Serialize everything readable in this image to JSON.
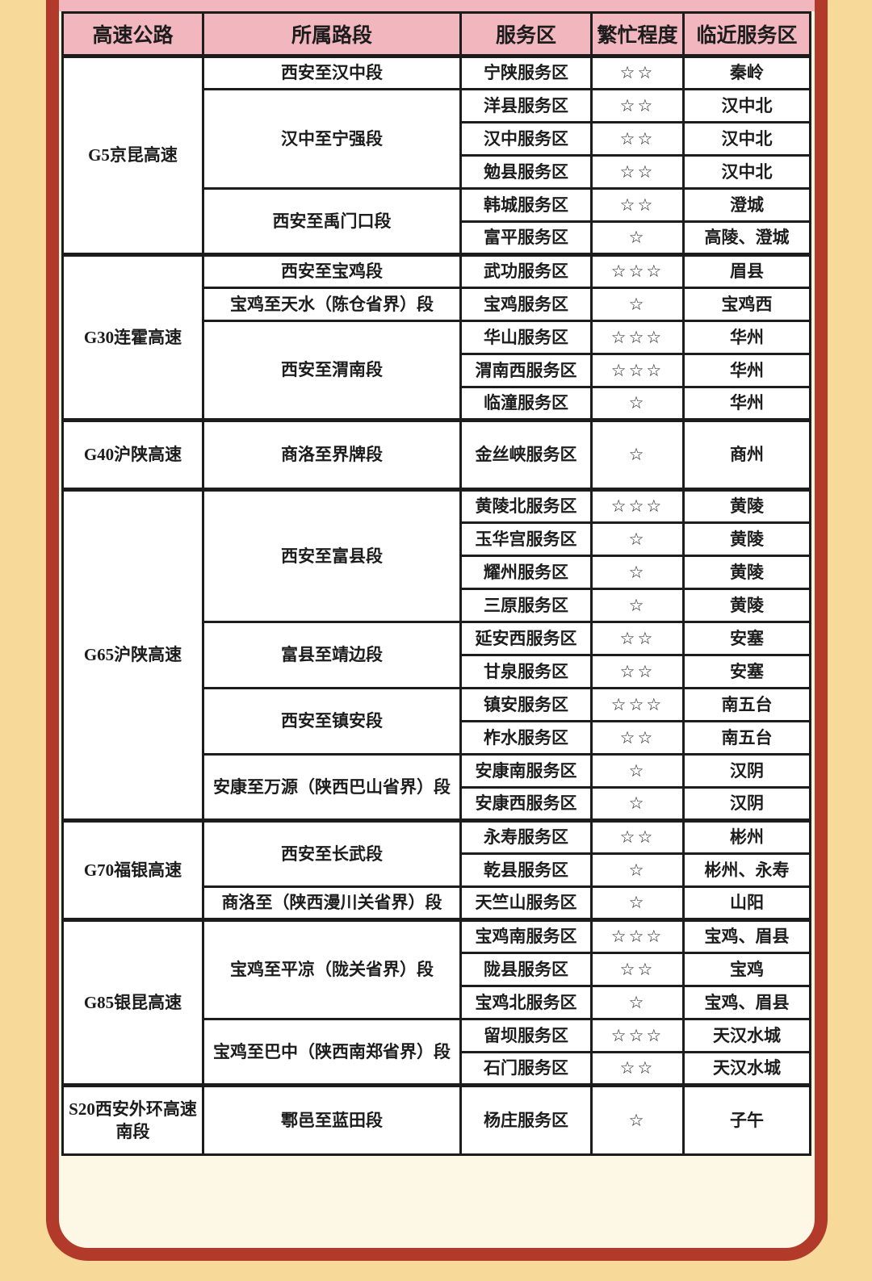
{
  "palette": {
    "outer_background": "#f7d99a",
    "frame_red": "#b23a2b",
    "card_cream": "#fdf7e6",
    "header_pink": "#f2b6bf",
    "cell_white": "#ffffff",
    "line_black": "#1c1c1c"
  },
  "table": {
    "header": [
      "高速公路",
      "所属路段",
      "服务区",
      "繁忙程度",
      "临近服务区"
    ],
    "groups": [
      {
        "highway": "G5京昆高速",
        "segments": [
          {
            "name": "西安至汉中段",
            "rows": [
              {
                "service_area": "宁陕服务区",
                "busy": "☆☆",
                "nearby": "秦岭"
              }
            ]
          },
          {
            "name": "汉中至宁强段",
            "rows": [
              {
                "service_area": "洋县服务区",
                "busy": "☆☆",
                "nearby": "汉中北"
              },
              {
                "service_area": "汉中服务区",
                "busy": "☆☆",
                "nearby": "汉中北"
              },
              {
                "service_area": "勉县服务区",
                "busy": "☆☆",
                "nearby": "汉中北"
              }
            ]
          },
          {
            "name": "西安至禹门口段",
            "rows": [
              {
                "service_area": "韩城服务区",
                "busy": "☆☆",
                "nearby": "澄城"
              },
              {
                "service_area": "富平服务区",
                "busy": "☆",
                "nearby": "高陵、澄城"
              }
            ]
          }
        ]
      },
      {
        "highway": "G30连霍高速",
        "segments": [
          {
            "name": "西安至宝鸡段",
            "rows": [
              {
                "service_area": "武功服务区",
                "busy": "☆☆☆",
                "nearby": "眉县"
              }
            ]
          },
          {
            "name": "宝鸡至天水（陈仓省界）段",
            "rows": [
              {
                "service_area": "宝鸡服务区",
                "busy": "☆",
                "nearby": "宝鸡西"
              }
            ]
          },
          {
            "name": "西安至渭南段",
            "rows": [
              {
                "service_area": "华山服务区",
                "busy": "☆☆☆",
                "nearby": "华州"
              },
              {
                "service_area": "渭南西服务区",
                "busy": "☆☆☆",
                "nearby": "华州"
              },
              {
                "service_area": "临潼服务区",
                "busy": "☆",
                "nearby": "华州"
              }
            ]
          }
        ]
      },
      {
        "highway": "G40沪陕高速",
        "segments": [
          {
            "name": "商洛至界牌段",
            "rows": [
              {
                "service_area": "金丝峡服务区",
                "busy": "☆",
                "nearby": "商州"
              }
            ]
          }
        ]
      },
      {
        "highway": "G65沪陕高速",
        "segments": [
          {
            "name": "西安至富县段",
            "rows": [
              {
                "service_area": "黄陵北服务区",
                "busy": "☆☆☆",
                "nearby": "黄陵"
              },
              {
                "service_area": "玉华宫服务区",
                "busy": "☆",
                "nearby": "黄陵"
              },
              {
                "service_area": "耀州服务区",
                "busy": "☆",
                "nearby": "黄陵"
              },
              {
                "service_area": "三原服务区",
                "busy": "☆",
                "nearby": "黄陵"
              }
            ]
          },
          {
            "name": "富县至靖边段",
            "rows": [
              {
                "service_area": "延安西服务区",
                "busy": "☆☆",
                "nearby": "安塞"
              },
              {
                "service_area": "甘泉服务区",
                "busy": "☆☆",
                "nearby": "安塞"
              }
            ]
          },
          {
            "name": "西安至镇安段",
            "rows": [
              {
                "service_area": "镇安服务区",
                "busy": "☆☆☆",
                "nearby": "南五台"
              },
              {
                "service_area": "柞水服务区",
                "busy": "☆☆",
                "nearby": "南五台"
              }
            ]
          },
          {
            "name": "安康至万源（陕西巴山省界）段",
            "rows": [
              {
                "service_area": "安康南服务区",
                "busy": "☆",
                "nearby": "汉阴"
              },
              {
                "service_area": "安康西服务区",
                "busy": "☆",
                "nearby": "汉阴"
              }
            ]
          }
        ]
      },
      {
        "highway": "G70福银高速",
        "segments": [
          {
            "name": "西安至长武段",
            "rows": [
              {
                "service_area": "永寿服务区",
                "busy": "☆☆",
                "nearby": "彬州"
              },
              {
                "service_area": "乾县服务区",
                "busy": "☆",
                "nearby": "彬州、永寿"
              }
            ]
          },
          {
            "name": "商洛至（陕西漫川关省界）段",
            "rows": [
              {
                "service_area": "天竺山服务区",
                "busy": "☆",
                "nearby": "山阳"
              }
            ]
          }
        ]
      },
      {
        "highway": "G85银昆高速",
        "segments": [
          {
            "name": "宝鸡至平凉（陇关省界）段",
            "rows": [
              {
                "service_area": "宝鸡南服务区",
                "busy": "☆☆☆",
                "nearby": "宝鸡、眉县"
              },
              {
                "service_area": "陇县服务区",
                "busy": "☆☆",
                "nearby": "宝鸡"
              },
              {
                "service_area": "宝鸡北服务区",
                "busy": "☆",
                "nearby": "宝鸡、眉县"
              }
            ]
          },
          {
            "name": "宝鸡至巴中（陕西南郑省界）段",
            "rows": [
              {
                "service_area": "留坝服务区",
                "busy": "☆☆☆",
                "nearby": "天汉水城"
              },
              {
                "service_area": "石门服务区",
                "busy": "☆☆",
                "nearby": "天汉水城"
              }
            ]
          }
        ]
      },
      {
        "highway": "S20西安外环高速南段",
        "segments": [
          {
            "name": "鄠邑至蓝田段",
            "rows": [
              {
                "service_area": "杨庄服务区",
                "busy": "☆",
                "nearby": "子午"
              }
            ]
          }
        ]
      }
    ]
  }
}
